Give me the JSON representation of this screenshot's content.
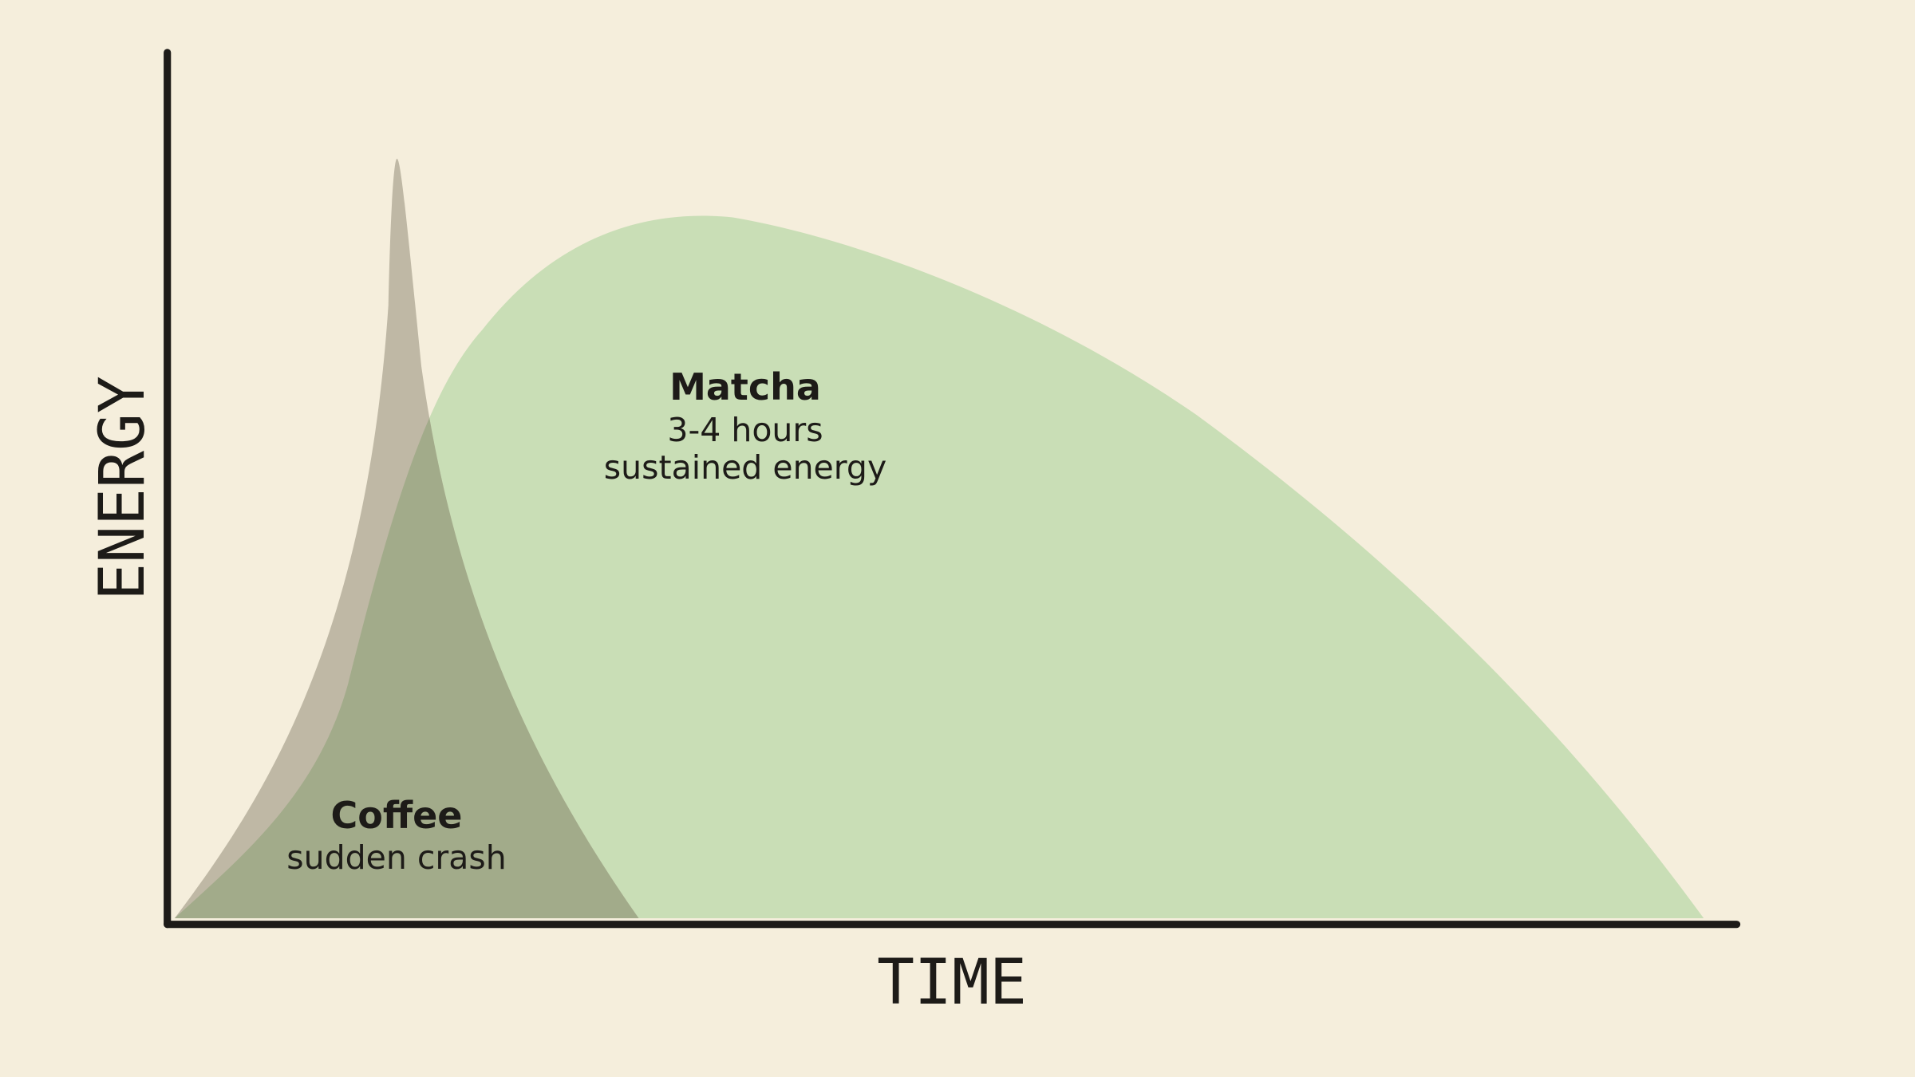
{
  "axes": {
    "y_label": "ENERGY",
    "x_label": "TIME"
  },
  "labels": {
    "matcha": {
      "name": "Matcha",
      "line1": "3-4 hours",
      "line2": "sustained energy"
    },
    "coffee": {
      "name": "Coffee",
      "line1": "sudden crash"
    }
  }
}
